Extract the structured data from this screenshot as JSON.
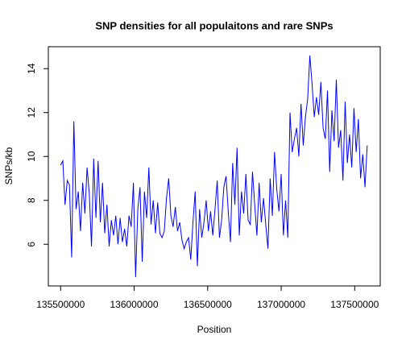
{
  "chart_data": {
    "type": "line",
    "title": "SNP densities for all populaitons and rare SNPs",
    "x_label": "Position",
    "y_label": "SNPs/kb",
    "color": "#0000ff",
    "x": [
      135500000,
      135515000,
      135530000,
      135545000,
      135560000,
      135575000,
      135590000,
      135605000,
      135620000,
      135635000,
      135650000,
      135665000,
      135680000,
      135695000,
      135710000,
      135725000,
      135740000,
      135755000,
      135770000,
      135785000,
      135800000,
      135815000,
      135830000,
      135845000,
      135860000,
      135875000,
      135890000,
      135905000,
      135920000,
      135935000,
      135950000,
      135965000,
      135980000,
      135995000,
      136010000,
      136025000,
      136040000,
      136055000,
      136070000,
      136085000,
      136100000,
      136115000,
      136130000,
      136145000,
      136160000,
      136175000,
      136190000,
      136205000,
      136220000,
      136235000,
      136250000,
      136265000,
      136280000,
      136295000,
      136310000,
      136325000,
      136340000,
      136355000,
      136370000,
      136385000,
      136400000,
      136415000,
      136430000,
      136445000,
      136460000,
      136475000,
      136490000,
      136505000,
      136520000,
      136535000,
      136550000,
      136565000,
      136580000,
      136595000,
      136610000,
      136625000,
      136640000,
      136655000,
      136670000,
      136685000,
      136700000,
      136715000,
      136730000,
      136745000,
      136760000,
      136775000,
      136790000,
      136805000,
      136820000,
      136835000,
      136850000,
      136865000,
      136880000,
      136895000,
      136910000,
      136925000,
      136940000,
      136955000,
      136970000,
      136985000,
      137000000,
      137015000,
      137030000,
      137045000,
      137060000,
      137075000,
      137090000,
      137105000,
      137120000,
      137135000,
      137150000,
      137165000,
      137180000,
      137195000,
      137210000,
      137225000,
      137240000,
      137255000,
      137270000,
      137285000,
      137300000,
      137315000,
      137330000,
      137345000,
      137360000,
      137375000,
      137390000,
      137405000,
      137420000,
      137435000,
      137450000,
      137465000,
      137480000,
      137495000,
      137510000,
      137525000,
      137540000,
      137555000,
      137570000,
      137585000
    ],
    "values": [
      9.6,
      9.8,
      7.8,
      8.9,
      8.7,
      5.4,
      11.6,
      7.6,
      8.4,
      6.6,
      8.8,
      7.4,
      9.5,
      8.3,
      5.9,
      9.9,
      7.2,
      9.8,
      7.0,
      8.8,
      6.5,
      7.8,
      5.9,
      7.1,
      6.4,
      7.3,
      6.0,
      7.2,
      6.1,
      6.7,
      5.9,
      7.3,
      6.8,
      8.8,
      4.5,
      7.6,
      8.6,
      5.2,
      8.4,
      7.2,
      9.5,
      6.9,
      8.0,
      6.5,
      7.9,
      6.5,
      6.3,
      6.6,
      8.1,
      9.0,
      7.3,
      6.8,
      7.7,
      6.6,
      7.0,
      6.2,
      5.8,
      6.1,
      6.3,
      5.3,
      7.0,
      8.4,
      5.0,
      7.6,
      6.3,
      7.0,
      8.0,
      6.6,
      7.5,
      6.4,
      7.6,
      8.9,
      6.3,
      7.1,
      8.6,
      9.1,
      7.5,
      6.1,
      9.7,
      7.8,
      10.4,
      6.4,
      8.4,
      7.4,
      9.2,
      7.1,
      6.9,
      9.3,
      7.8,
      6.4,
      8.8,
      7.0,
      8.1,
      6.9,
      5.8,
      9.0,
      7.3,
      10.2,
      8.5,
      7.5,
      9.2,
      6.4,
      8.0,
      6.3,
      12.0,
      10.2,
      10.8,
      11.3,
      10.0,
      12.4,
      10.5,
      11.8,
      12.6,
      14.6,
      13.3,
      11.8,
      12.7,
      11.9,
      13.4,
      11.3,
      10.8,
      13.0,
      9.3,
      12.1,
      10.7,
      13.5,
      10.4,
      11.2,
      8.9,
      12.5,
      9.7,
      11.0,
      9.5,
      12.2,
      10.2,
      11.7,
      9.0,
      10.1,
      8.6,
      10.5
    ],
    "xlim": [
      135416400,
      137673600
    ],
    "xticks": [
      135500000,
      136000000,
      136500000,
      137000000,
      137500000
    ],
    "ylim": [
      4.1,
      15.0
    ],
    "yticks": [
      6,
      8,
      10,
      12,
      14
    ]
  }
}
